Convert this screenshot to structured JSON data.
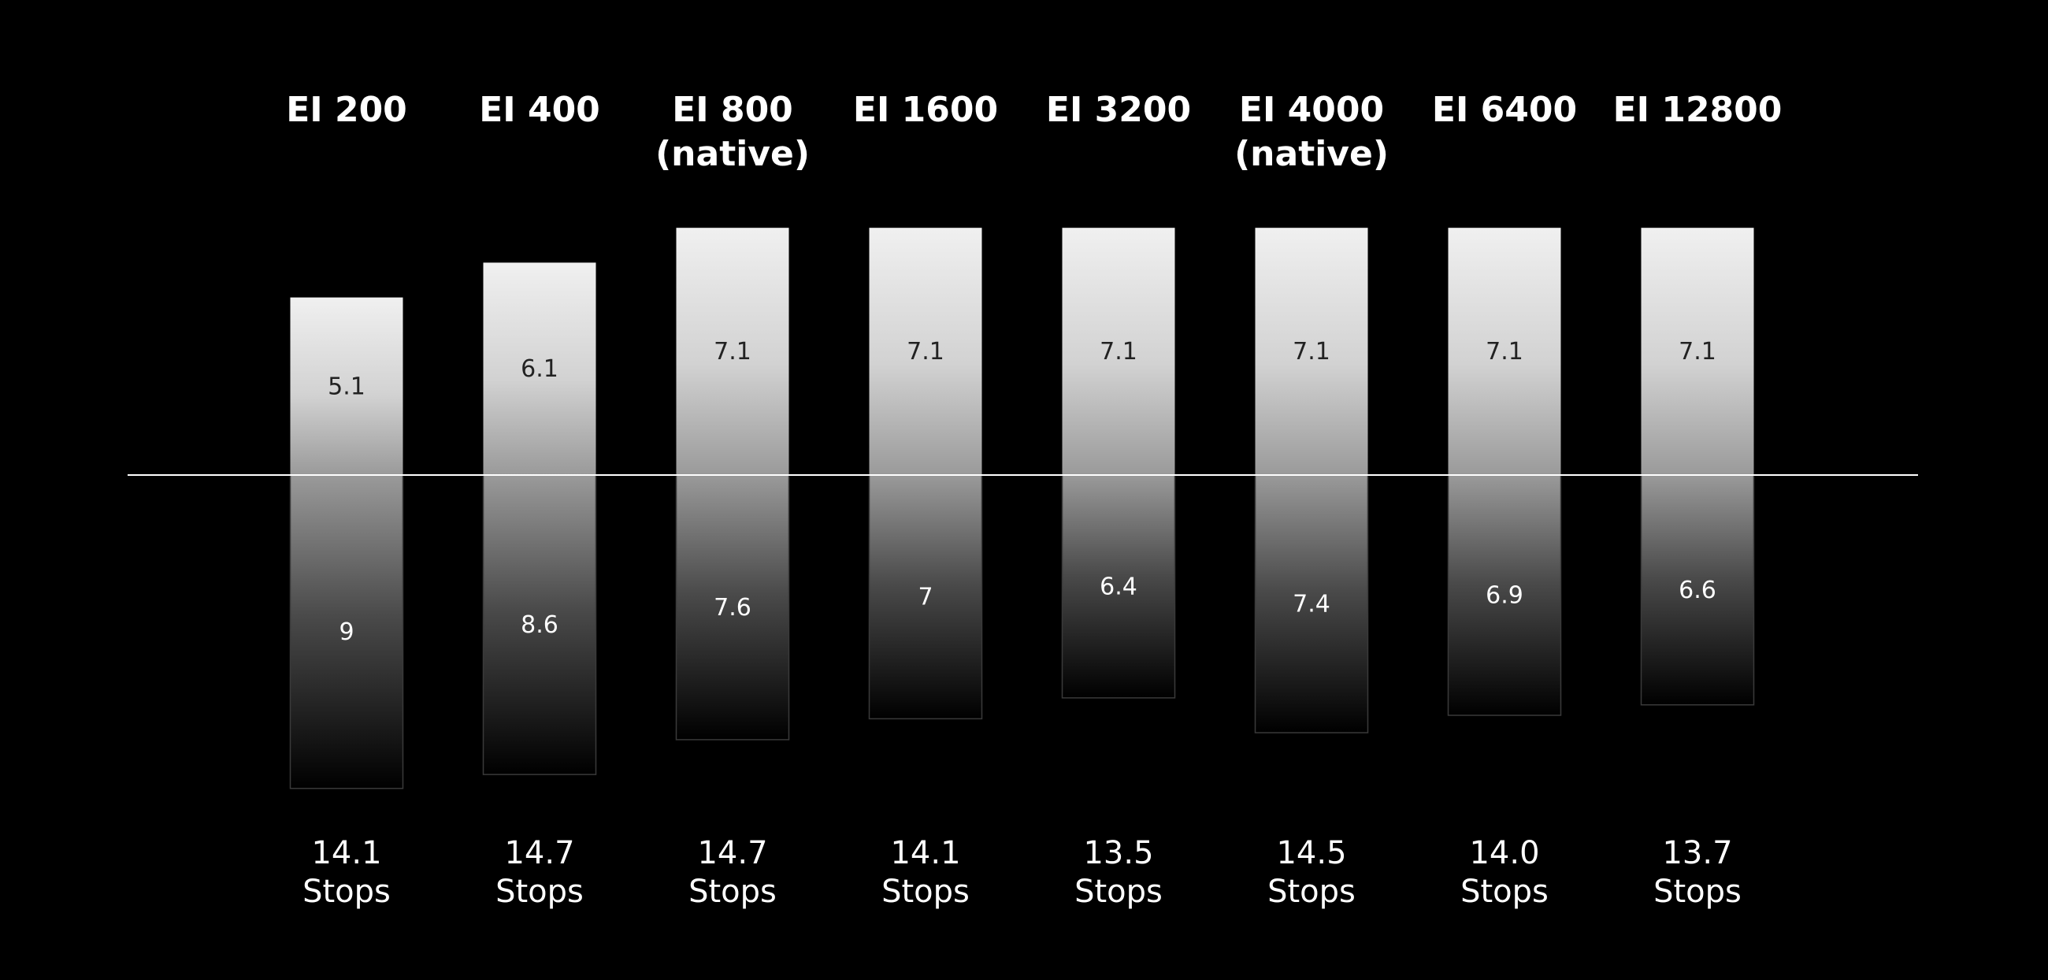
{
  "chart_data": {
    "type": "bar",
    "orientation": "diverging-vertical",
    "categories": [
      {
        "line1": "EI 200",
        "line2": ""
      },
      {
        "line1": "EI 400",
        "line2": ""
      },
      {
        "line1": "EI 800",
        "line2": "(native)"
      },
      {
        "line1": "EI 1600",
        "line2": ""
      },
      {
        "line1": "EI 3200",
        "line2": ""
      },
      {
        "line1": "EI 4000",
        "line2": "(native)"
      },
      {
        "line1": "EI 6400",
        "line2": ""
      },
      {
        "line1": "EI 12800",
        "line2": ""
      }
    ],
    "series": [
      {
        "position": "above baseline",
        "values": [
          5.1,
          6.1,
          7.1,
          7.1,
          7.1,
          7.1,
          7.1,
          7.1
        ],
        "labels": [
          "5.1",
          "6.1",
          "7.1",
          "7.1",
          "7.1",
          "7.1",
          "7.1",
          "7.1"
        ]
      },
      {
        "position": "below baseline",
        "values": [
          9,
          8.6,
          7.6,
          7,
          6.4,
          7.4,
          6.9,
          6.6
        ],
        "labels": [
          "9",
          "8.6",
          "7.6",
          "7",
          "6.4",
          "7.4",
          "6.9",
          "6.6"
        ]
      }
    ],
    "totals": {
      "values": [
        14.1,
        14.7,
        14.7,
        14.1,
        13.5,
        14.5,
        14.0,
        13.7
      ],
      "labels": [
        "14.1",
        "14.7",
        "14.7",
        "14.1",
        "13.5",
        "14.5",
        "14.0",
        "13.7"
      ],
      "unit_label": "Stops"
    },
    "baseline": true,
    "grid": false,
    "legend": "none",
    "colors": {
      "background": "#000000",
      "bar_top": "#f0f0f0",
      "bar_mid": "#9a9a9a",
      "bar_bottom": "#000000",
      "baseline": "#ffffff",
      "text": "#ffffff"
    }
  }
}
